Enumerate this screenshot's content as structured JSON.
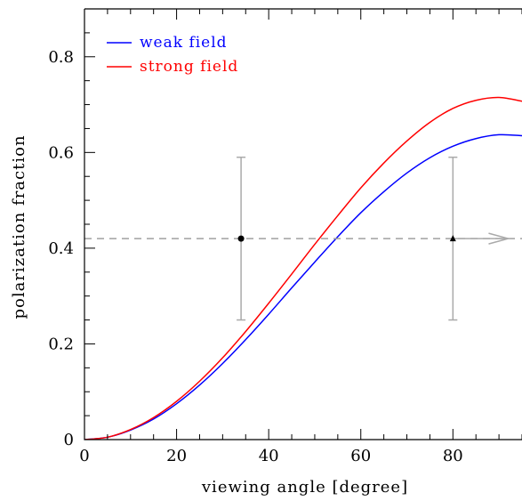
{
  "chart_data": {
    "type": "line",
    "xlabel": "viewing angle [degree]",
    "ylabel": "polarization fraction",
    "xlim": [
      0,
      95
    ],
    "ylim": [
      0,
      0.9
    ],
    "x_ticks": [
      0,
      20,
      40,
      60,
      80
    ],
    "y_ticks": [
      0,
      0.2,
      0.4,
      0.6,
      0.8
    ],
    "x_tick_labels": [
      "0",
      "20",
      "40",
      "60",
      "80"
    ],
    "y_tick_labels": [
      "0",
      "0.2",
      "0.4",
      "0.6",
      "0.8"
    ],
    "grid": false,
    "legend_position": "top-left",
    "series": [
      {
        "name": "weak field",
        "color": "#0000ff",
        "x": [
          0,
          5,
          10,
          15,
          20,
          25,
          30,
          35,
          40,
          45,
          50,
          55,
          60,
          65,
          70,
          75,
          80,
          85,
          90,
          95
        ],
        "y": [
          0,
          0.005,
          0.02,
          0.043,
          0.075,
          0.114,
          0.159,
          0.209,
          0.262,
          0.317,
          0.371,
          0.424,
          0.474,
          0.518,
          0.557,
          0.589,
          0.613,
          0.629,
          0.637,
          0.635
        ]
      },
      {
        "name": "strong field",
        "color": "#ff0000",
        "x": [
          0,
          5,
          10,
          15,
          20,
          25,
          30,
          35,
          40,
          45,
          50,
          55,
          60,
          65,
          70,
          75,
          80,
          85,
          90,
          95
        ],
        "y": [
          0,
          0.005,
          0.021,
          0.046,
          0.08,
          0.122,
          0.171,
          0.226,
          0.285,
          0.346,
          0.408,
          0.468,
          0.526,
          0.578,
          0.624,
          0.663,
          0.692,
          0.709,
          0.715,
          0.707
        ]
      }
    ],
    "reference_line": {
      "y": 0.42,
      "style": "dashed",
      "color": "#a0a0a0"
    },
    "data_points": [
      {
        "x": 34,
        "y": 0.42,
        "y_err_low": 0.25,
        "y_err_high": 0.59,
        "marker": "circle",
        "color": "#000000"
      },
      {
        "x": 80,
        "y": 0.42,
        "y_err_low": 0.25,
        "y_err_high": 0.59,
        "marker": "triangle",
        "color": "#000000",
        "arrow_to_x": 92
      }
    ],
    "errorbar_color": "#aaaaaa"
  }
}
